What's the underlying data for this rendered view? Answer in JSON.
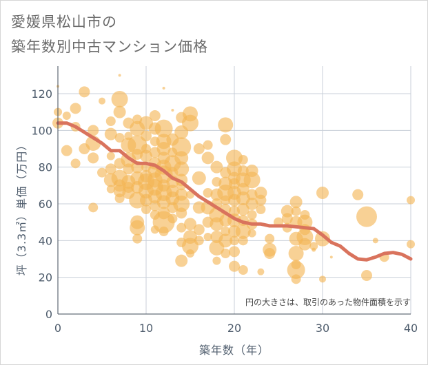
{
  "chart_data": {
    "type": "scatter",
    "title_lines": [
      "愛媛県松山市の",
      "築年数別中古マンション価格"
    ],
    "xlabel": "築年数（年）",
    "ylabel": "坪（3.3㎡）単価（万円）",
    "xlim": [
      0,
      40
    ],
    "ylim": [
      0,
      135
    ],
    "x_ticks": [
      0,
      10,
      20,
      30,
      40
    ],
    "y_ticks": [
      0,
      20,
      40,
      60,
      80,
      100,
      120
    ],
    "grid": true,
    "note": "円の大きさは、取引のあった物件面積を示す",
    "colors": {
      "bubble": "#f3b554",
      "trend": "#d9735d",
      "grid": "#c8cfd8"
    },
    "series": [
      {
        "kind": "bubble",
        "points": [
          [
            0,
            124,
            2
          ],
          [
            0,
            110,
            6
          ],
          [
            0,
            104,
            8
          ],
          [
            1,
            108,
            6
          ],
          [
            1,
            89,
            8
          ],
          [
            2,
            112,
            8
          ],
          [
            2,
            102,
            7
          ],
          [
            2,
            82,
            7
          ],
          [
            3,
            121,
            8
          ],
          [
            3,
            90,
            8
          ],
          [
            4,
            100,
            8
          ],
          [
            4,
            93,
            11
          ],
          [
            4,
            85,
            8
          ],
          [
            4,
            58,
            7
          ],
          [
            5,
            116,
            5
          ],
          [
            5,
            77,
            7
          ],
          [
            6,
            105,
            7
          ],
          [
            6,
            98,
            9
          ],
          [
            6,
            86,
            6
          ],
          [
            6,
            79,
            8
          ],
          [
            6,
            73,
            10
          ],
          [
            6,
            68,
            6
          ],
          [
            7,
            130,
            2
          ],
          [
            7,
            117,
            12
          ],
          [
            7,
            110,
            9
          ],
          [
            7,
            96,
            7
          ],
          [
            7,
            82,
            8
          ],
          [
            7,
            74,
            12
          ],
          [
            7,
            70,
            9
          ],
          [
            7,
            67,
            9
          ],
          [
            7,
            63,
            7
          ],
          [
            8,
            104,
            8
          ],
          [
            8,
            97,
            6
          ],
          [
            8,
            92,
            11
          ],
          [
            8,
            84,
            11
          ],
          [
            8,
            79,
            8
          ],
          [
            8,
            72,
            10
          ],
          [
            8,
            69,
            8
          ],
          [
            8,
            66,
            9
          ],
          [
            9,
            106,
            7
          ],
          [
            9,
            101,
            11
          ],
          [
            9,
            92,
            14
          ],
          [
            9,
            87,
            8
          ],
          [
            9,
            80,
            9
          ],
          [
            9,
            74,
            10
          ],
          [
            9,
            69,
            9
          ],
          [
            9,
            62,
            12
          ],
          [
            9,
            50,
            10
          ],
          [
            9,
            47,
            11
          ],
          [
            9,
            41,
            7
          ],
          [
            10,
            104,
            10
          ],
          [
            10,
            97,
            8
          ],
          [
            10,
            90,
            7
          ],
          [
            10,
            86,
            9
          ],
          [
            10,
            80,
            7
          ],
          [
            10,
            75,
            9
          ],
          [
            10,
            72,
            12
          ],
          [
            10,
            67,
            11
          ],
          [
            10,
            62,
            9
          ],
          [
            10,
            57,
            7
          ],
          [
            11,
            108,
            8
          ],
          [
            11,
            101,
            9
          ],
          [
            11,
            94,
            7
          ],
          [
            11,
            88,
            8
          ],
          [
            11,
            82,
            9
          ],
          [
            11,
            78,
            10
          ],
          [
            11,
            73,
            11
          ],
          [
            11,
            69,
            12
          ],
          [
            11,
            64,
            10
          ],
          [
            11,
            59,
            8
          ],
          [
            11,
            54,
            7
          ],
          [
            11,
            46,
            6
          ],
          [
            12,
            123,
            2
          ],
          [
            12,
            101,
            13
          ],
          [
            12,
            94,
            11
          ],
          [
            12,
            90,
            10
          ],
          [
            12,
            85,
            9
          ],
          [
            12,
            80,
            11
          ],
          [
            12,
            76,
            13
          ],
          [
            12,
            70,
            9
          ],
          [
            12,
            66,
            12
          ],
          [
            12,
            61,
            10
          ],
          [
            12,
            55,
            9
          ],
          [
            12,
            50,
            16
          ],
          [
            12,
            45,
            7
          ],
          [
            13,
            111,
            2
          ],
          [
            13,
            95,
            9
          ],
          [
            13,
            88,
            7
          ],
          [
            13,
            82,
            12
          ],
          [
            13,
            77,
            8
          ],
          [
            13,
            72,
            9
          ],
          [
            13,
            67,
            9
          ],
          [
            13,
            63,
            10
          ],
          [
            13,
            58,
            8
          ],
          [
            13,
            52,
            7
          ],
          [
            14,
            107,
            8
          ],
          [
            14,
            99,
            10
          ],
          [
            14,
            91,
            14
          ],
          [
            14,
            85,
            10
          ],
          [
            14,
            79,
            11
          ],
          [
            14,
            73,
            9
          ],
          [
            14,
            70,
            7
          ],
          [
            14,
            65,
            9
          ],
          [
            14,
            60,
            12
          ],
          [
            14,
            55,
            8
          ],
          [
            14,
            47,
            7
          ],
          [
            14,
            39,
            7
          ],
          [
            14,
            29,
            9
          ],
          [
            15,
            109,
            11
          ],
          [
            15,
            104,
            12
          ],
          [
            15,
            65,
            6
          ],
          [
            15,
            49,
            9
          ],
          [
            15,
            42,
            10
          ],
          [
            15,
            37,
            12
          ],
          [
            15,
            33,
            6
          ],
          [
            16,
            90,
            8
          ],
          [
            16,
            74,
            10
          ],
          [
            16,
            58,
            9
          ],
          [
            16,
            46,
            8
          ],
          [
            16,
            40,
            7
          ],
          [
            17,
            92,
            7
          ],
          [
            17,
            85,
            9
          ],
          [
            17,
            66,
            7
          ],
          [
            17,
            58,
            10
          ],
          [
            17,
            50,
            8
          ],
          [
            17,
            42,
            6
          ],
          [
            18,
            80,
            9
          ],
          [
            18,
            72,
            7
          ],
          [
            18,
            65,
            9
          ],
          [
            18,
            60,
            8
          ],
          [
            18,
            54,
            11
          ],
          [
            18,
            49,
            10
          ],
          [
            18,
            42,
            9
          ],
          [
            18,
            36,
            11
          ],
          [
            18,
            29,
            6
          ],
          [
            19,
            103,
            11
          ],
          [
            19,
            95,
            8
          ],
          [
            19,
            77,
            8
          ],
          [
            19,
            71,
            10
          ],
          [
            19,
            66,
            12
          ],
          [
            19,
            62,
            7
          ],
          [
            19,
            57,
            8
          ],
          [
            19,
            51,
            9
          ],
          [
            19,
            45,
            7
          ],
          [
            19,
            40,
            10
          ],
          [
            19,
            33,
            7
          ],
          [
            20,
            85,
            12
          ],
          [
            20,
            79,
            11
          ],
          [
            20,
            74,
            9
          ],
          [
            20,
            71,
            8
          ],
          [
            20,
            66,
            10
          ],
          [
            20,
            62,
            9
          ],
          [
            20,
            56,
            8
          ],
          [
            20,
            51,
            10
          ],
          [
            20,
            45,
            9
          ],
          [
            20,
            40,
            7
          ],
          [
            20,
            34,
            8
          ],
          [
            20,
            26,
            8
          ],
          [
            21,
            84,
            7
          ],
          [
            21,
            78,
            8
          ],
          [
            21,
            73,
            11
          ],
          [
            21,
            68,
            9
          ],
          [
            21,
            63,
            10
          ],
          [
            21,
            57,
            9
          ],
          [
            21,
            51,
            8
          ],
          [
            21,
            45,
            11
          ],
          [
            21,
            40,
            7
          ],
          [
            21,
            24,
            7
          ],
          [
            22,
            78,
            9
          ],
          [
            22,
            73,
            12
          ],
          [
            22,
            65,
            8
          ],
          [
            22,
            60,
            9
          ],
          [
            22,
            54,
            7
          ],
          [
            22,
            49,
            8
          ],
          [
            22,
            44,
            6
          ],
          [
            23,
            66,
            9
          ],
          [
            23,
            62,
            8
          ],
          [
            23,
            57,
            7
          ],
          [
            23,
            23,
            5
          ],
          [
            24,
            41,
            7
          ],
          [
            24,
            35,
            10
          ],
          [
            24,
            33,
            8
          ],
          [
            25,
            50,
            7
          ],
          [
            26,
            56,
            9
          ],
          [
            26,
            52,
            8
          ],
          [
            26,
            47,
            7
          ],
          [
            27,
            61,
            9
          ],
          [
            27,
            56,
            7
          ],
          [
            27,
            50,
            9
          ],
          [
            27,
            41,
            10
          ],
          [
            27,
            33,
            11
          ],
          [
            27,
            27,
            7
          ],
          [
            27,
            24,
            13
          ],
          [
            27,
            19,
            7
          ],
          [
            28,
            54,
            7
          ],
          [
            28,
            50,
            11
          ],
          [
            28,
            46,
            8
          ],
          [
            28,
            42,
            12
          ],
          [
            28,
            38,
            9
          ],
          [
            29,
            37,
            6
          ],
          [
            29,
            35,
            3
          ],
          [
            30,
            66,
            9
          ],
          [
            30,
            41,
            11
          ],
          [
            30,
            19,
            5
          ],
          [
            31,
            31,
            2
          ],
          [
            34,
            65,
            8
          ],
          [
            35,
            53,
            15
          ],
          [
            35,
            21,
            8
          ],
          [
            36,
            40,
            4
          ],
          [
            37,
            31,
            7
          ],
          [
            40,
            62,
            6
          ],
          [
            40,
            38,
            6
          ]
        ]
      },
      {
        "kind": "line",
        "x": [
          0,
          1,
          2,
          3,
          4,
          5,
          6,
          7,
          8,
          9,
          10,
          11,
          12,
          13,
          14,
          15,
          16,
          17,
          18,
          19,
          20,
          21,
          22,
          23,
          24,
          25,
          26,
          27,
          28,
          29,
          30,
          31,
          32,
          33,
          34,
          35,
          36,
          37,
          38,
          39,
          40
        ],
        "y": [
          104,
          104,
          102,
          99,
          96,
          93,
          89,
          89,
          85,
          82,
          82,
          81,
          78,
          74,
          72,
          68,
          64,
          61,
          58,
          55,
          52,
          50,
          49,
          49,
          48,
          48,
          48,
          47.5,
          47,
          46.5,
          43,
          39,
          37,
          33,
          30,
          29.5,
          31,
          33,
          33.5,
          32.5,
          30
        ]
      }
    ]
  }
}
